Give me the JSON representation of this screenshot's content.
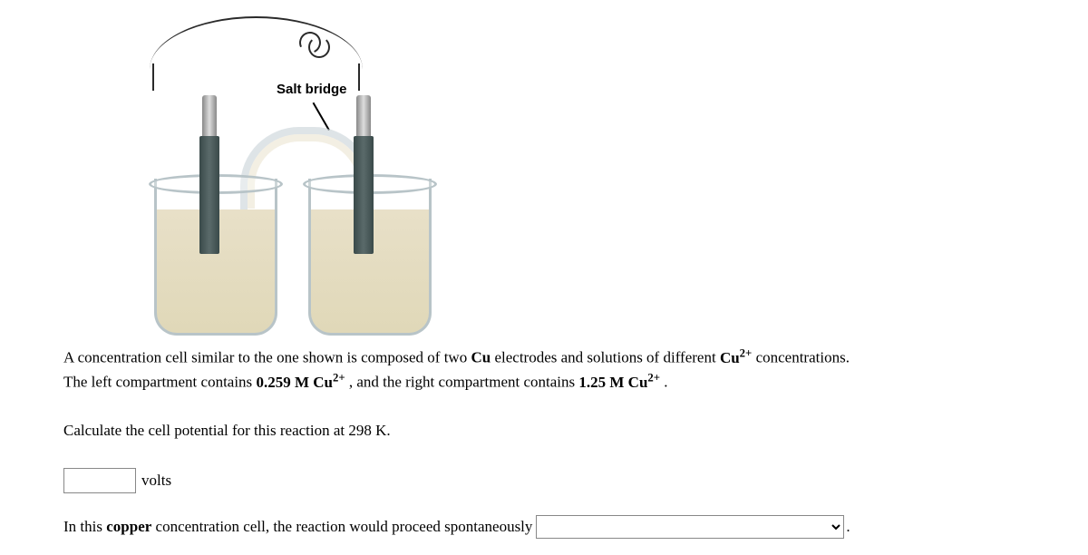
{
  "diagram": {
    "salt_bridge_label": "Salt bridge",
    "label_fontsize": 15,
    "label_fontweight": "bold",
    "beaker_border_color": "#b8c4c8",
    "solution_color": "#e8e0c8",
    "electrode_color": "#3a4a4a",
    "wire_color": "#2a2a2a",
    "clip_color": "#aaaaaa"
  },
  "problem": {
    "line1_prefix": "A concentration cell similar to the one shown is composed of two ",
    "line1_bold1": "Cu",
    "line1_mid": " electrodes and solutions of different ",
    "line1_bold2": "Cu",
    "line1_sup2": "2+",
    "line1_suffix": " concentrations.",
    "line2_prefix": "The left compartment contains ",
    "line2_bold1": "0.259 M Cu",
    "line2_sup1": "2+",
    "line2_mid": " , and the right compartment contains ",
    "line2_bold2": "1.25 M Cu",
    "line2_sup2": "2+",
    "line2_suffix": " ."
  },
  "question1": {
    "text": "Calculate the cell potential for this reaction at 298 K.",
    "input_value": "",
    "unit": "volts"
  },
  "question2": {
    "prefix": "In this ",
    "bold": "copper",
    "suffix": " concentration cell, the reaction would proceed spontaneously",
    "select_value": "",
    "period": "."
  },
  "style": {
    "body_fontsize": 17,
    "background": "#ffffff",
    "text_color": "#000000"
  }
}
